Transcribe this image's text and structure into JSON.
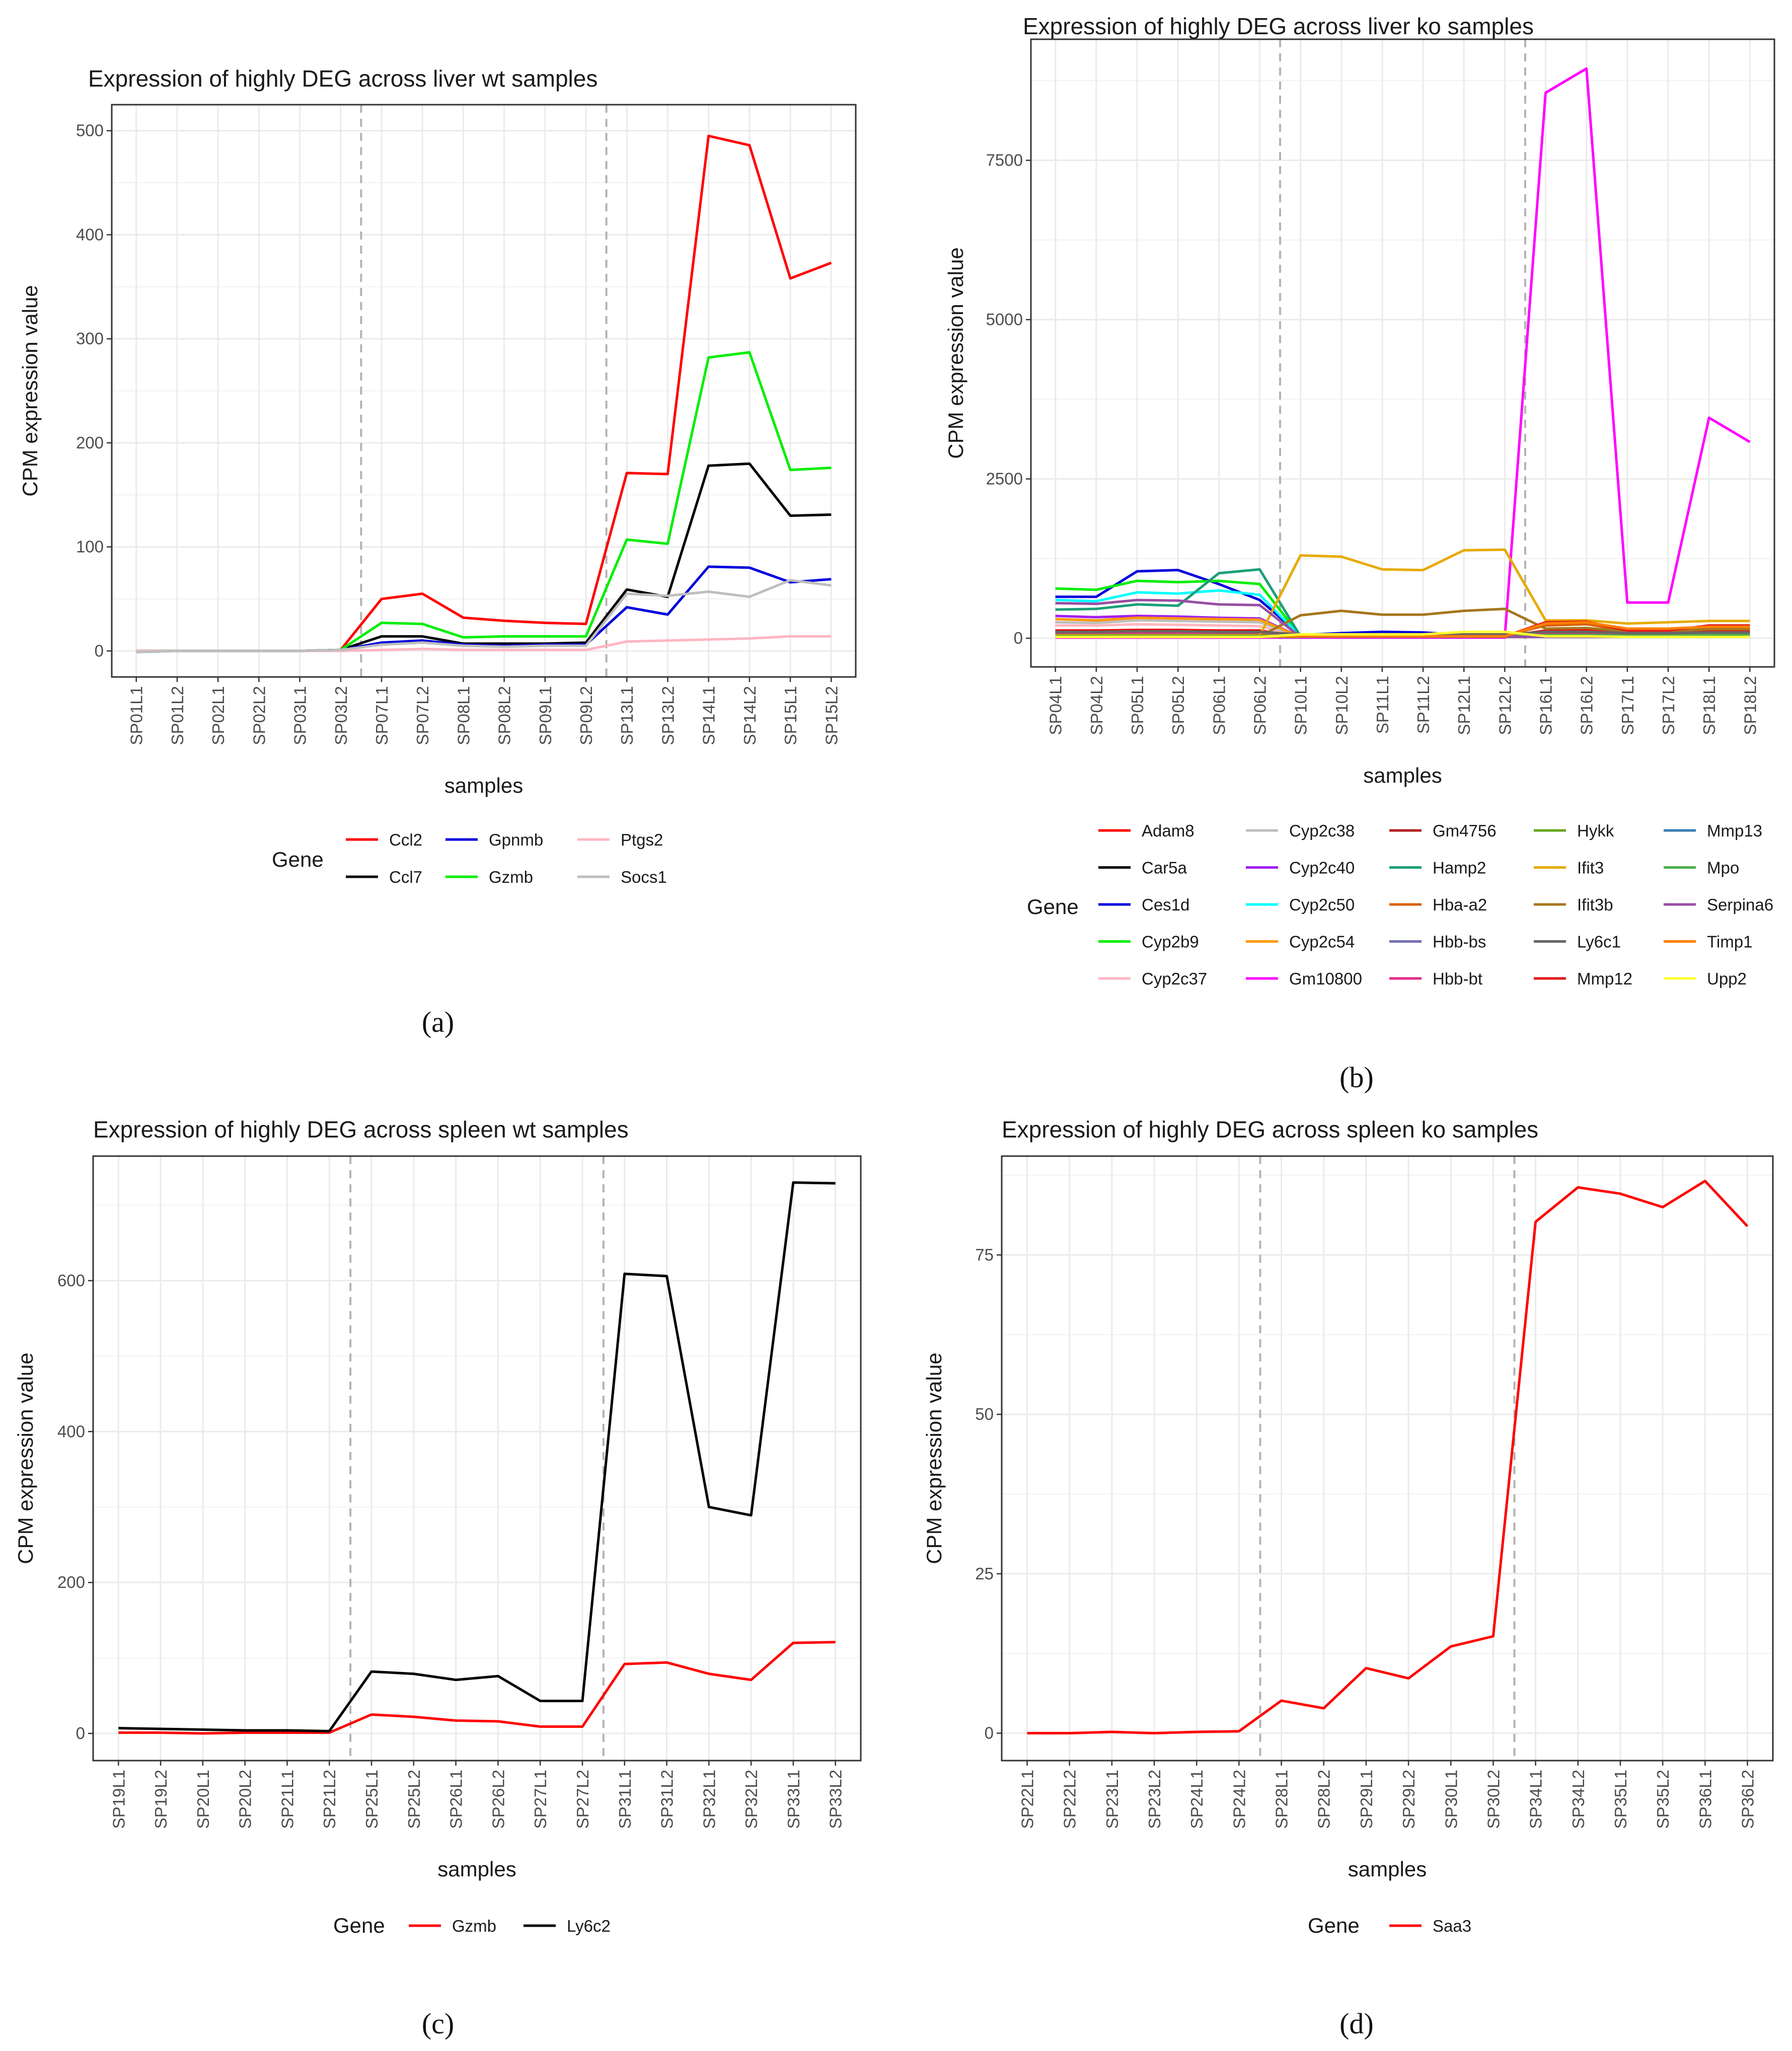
{
  "chart_data": [
    {
      "panel": "a",
      "type": "line",
      "title": "Expression of highly DEG across liver wt samples",
      "xlabel": "samples",
      "ylabel": "CPM expression value",
      "ylim": [
        -25,
        525
      ],
      "yticks": [
        0,
        100,
        200,
        300,
        400,
        500
      ],
      "categories": [
        "SP01L1",
        "SP01L2",
        "SP02L1",
        "SP02L2",
        "SP03L1",
        "SP03L2",
        "SP07L1",
        "SP07L2",
        "SP08L1",
        "SP08L2",
        "SP09L1",
        "SP09L2",
        "SP13L1",
        "SP13L2",
        "SP14L1",
        "SP14L2",
        "SP15L1",
        "SP15L2"
      ],
      "vlines_after_index": [
        5,
        11
      ],
      "legend_title": "Gene",
      "legend_cols": 3,
      "series": [
        {
          "name": "Ccl2",
          "color": "#ff0000",
          "values": [
            0,
            0,
            0,
            0,
            0,
            1,
            50,
            55,
            32,
            29,
            27,
            26,
            171,
            170,
            495,
            486,
            358,
            373
          ]
        },
        {
          "name": "Ccl7",
          "color": "#000000",
          "values": [
            0,
            0,
            0,
            0,
            0,
            1,
            14,
            14,
            7,
            7,
            7,
            8,
            59,
            52,
            178,
            180,
            130,
            131
          ]
        },
        {
          "name": "Gpnmb",
          "color": "#0000dd",
          "values": [
            -1,
            0,
            0,
            0,
            0,
            1,
            8,
            10,
            6,
            5,
            6,
            6,
            42,
            35,
            81,
            80,
            66,
            69
          ]
        },
        {
          "name": "Gzmb",
          "color": "#00ee00",
          "values": [
            0,
            0,
            0,
            0,
            0,
            1,
            27,
            26,
            13,
            14,
            14,
            14,
            107,
            103,
            282,
            287,
            174,
            176
          ]
        },
        {
          "name": "Ptgs2",
          "color": "#ffb6c1",
          "values": [
            0,
            0,
            0,
            0,
            0,
            0,
            1,
            2,
            1,
            1,
            1,
            1,
            9,
            10,
            11,
            12,
            14,
            14
          ]
        },
        {
          "name": "Socs1",
          "color": "#bebebe",
          "values": [
            -1,
            0,
            0,
            0,
            0,
            1,
            6,
            8,
            5,
            4,
            5,
            5,
            55,
            53,
            57,
            52,
            68,
            63
          ]
        }
      ]
    },
    {
      "panel": "b",
      "type": "line",
      "title": "Expression of highly DEG across liver ko samples",
      "xlabel": "samples",
      "ylabel": "CPM expression value",
      "ylim": [
        -450,
        9400
      ],
      "yticks": [
        0,
        2500,
        5000,
        7500
      ],
      "categories": [
        "SP04L1",
        "SP04L2",
        "SP05L1",
        "SP05L2",
        "SP06L1",
        "SP06L2",
        "SP10L1",
        "SP10L2",
        "SP11L1",
        "SP11L2",
        "SP12L1",
        "SP12L2",
        "SP16L1",
        "SP16L2",
        "SP17L1",
        "SP17L2",
        "SP18L1",
        "SP18L2"
      ],
      "vlines_after_index": [
        5,
        11
      ],
      "legend_title": "Gene",
      "legend_cols": 5,
      "series": [
        {
          "name": "Adam8",
          "color": "#ff0000",
          "values": [
            120,
            120,
            130,
            130,
            120,
            120,
            20,
            30,
            30,
            30,
            30,
            30,
            120,
            130,
            100,
            100,
            120,
            120
          ]
        },
        {
          "name": "Car5a",
          "color": "#000000",
          "values": [
            100,
            100,
            110,
            110,
            100,
            100,
            20,
            20,
            20,
            20,
            20,
            20,
            40,
            40,
            30,
            30,
            40,
            40
          ]
        },
        {
          "name": "Ces1d",
          "color": "#0000dd",
          "values": [
            650,
            650,
            1050,
            1070,
            850,
            600,
            50,
            80,
            100,
            90,
            50,
            40,
            30,
            30,
            20,
            20,
            20,
            20
          ]
        },
        {
          "name": "Cyp2b9",
          "color": "#00ee00",
          "values": [
            780,
            760,
            900,
            880,
            900,
            850,
            30,
            30,
            30,
            30,
            30,
            30,
            20,
            20,
            20,
            20,
            20,
            20
          ]
        },
        {
          "name": "Cyp2c37",
          "color": "#ffb6c1",
          "values": [
            200,
            200,
            220,
            210,
            200,
            190,
            20,
            20,
            20,
            20,
            20,
            20,
            20,
            20,
            20,
            20,
            20,
            20
          ]
        },
        {
          "name": "Cyp2c38",
          "color": "#bebebe",
          "values": [
            250,
            240,
            280,
            270,
            260,
            250,
            20,
            20,
            20,
            20,
            20,
            20,
            20,
            20,
            20,
            20,
            20,
            20
          ]
        },
        {
          "name": "Cyp2c40",
          "color": "#a020f0",
          "values": [
            350,
            330,
            350,
            340,
            320,
            310,
            20,
            20,
            20,
            20,
            20,
            20,
            20,
            20,
            20,
            20,
            20,
            20
          ]
        },
        {
          "name": "Cyp2c50",
          "color": "#00ffff",
          "values": [
            600,
            580,
            720,
            700,
            750,
            680,
            30,
            30,
            30,
            30,
            30,
            30,
            20,
            20,
            20,
            20,
            20,
            20
          ]
        },
        {
          "name": "Cyp2c54",
          "color": "#ff9900",
          "values": [
            300,
            280,
            320,
            310,
            300,
            290,
            20,
            20,
            20,
            20,
            20,
            20,
            20,
            20,
            20,
            20,
            20,
            20
          ]
        },
        {
          "name": "Gm10800",
          "color": "#ff00ff",
          "values": [
            10,
            10,
            10,
            10,
            10,
            10,
            10,
            10,
            10,
            10,
            10,
            10,
            8560,
            8940,
            560,
            560,
            3460,
            3080
          ]
        },
        {
          "name": "Gm4756",
          "color": "#b22222",
          "values": [
            40,
            40,
            40,
            40,
            40,
            40,
            20,
            20,
            20,
            20,
            20,
            20,
            60,
            60,
            40,
            40,
            50,
            50
          ]
        },
        {
          "name": "Hamp2",
          "color": "#1b9e77",
          "values": [
            450,
            460,
            530,
            510,
            1020,
            1080,
            30,
            30,
            30,
            30,
            30,
            30,
            20,
            20,
            20,
            20,
            20,
            20
          ]
        },
        {
          "name": "Hba-a2",
          "color": "#d95f02",
          "values": [
            60,
            60,
            70,
            70,
            60,
            60,
            40,
            40,
            50,
            50,
            40,
            40,
            200,
            220,
            120,
            120,
            150,
            150
          ]
        },
        {
          "name": "Hbb-bs",
          "color": "#7570b3",
          "values": [
            80,
            80,
            90,
            90,
            80,
            80,
            50,
            60,
            60,
            60,
            50,
            50,
            100,
            100,
            80,
            80,
            90,
            90
          ]
        },
        {
          "name": "Hbb-bt",
          "color": "#e7298a",
          "values": [
            70,
            70,
            80,
            80,
            70,
            70,
            40,
            50,
            50,
            50,
            40,
            40,
            90,
            90,
            70,
            70,
            80,
            80
          ]
        },
        {
          "name": "Hykk",
          "color": "#66a61e",
          "values": [
            50,
            50,
            50,
            50,
            50,
            50,
            20,
            20,
            20,
            20,
            20,
            20,
            30,
            30,
            20,
            20,
            30,
            30
          ]
        },
        {
          "name": "Ifit3",
          "color": "#e6ab02",
          "values": [
            40,
            40,
            40,
            40,
            40,
            40,
            1300,
            1280,
            1080,
            1070,
            1380,
            1390,
            280,
            280,
            230,
            250,
            270,
            270
          ]
        },
        {
          "name": "Ifit3b",
          "color": "#a6761d",
          "values": [
            30,
            30,
            30,
            30,
            30,
            30,
            360,
            430,
            370,
            370,
            430,
            460,
            150,
            160,
            110,
            110,
            140,
            140
          ]
        },
        {
          "name": "Ly6c1",
          "color": "#666666",
          "values": [
            100,
            100,
            110,
            110,
            100,
            100,
            60,
            60,
            60,
            60,
            60,
            60,
            100,
            100,
            80,
            80,
            90,
            90
          ]
        },
        {
          "name": "Mmp12",
          "color": "#e41a1c",
          "values": [
            20,
            20,
            20,
            20,
            20,
            20,
            30,
            30,
            30,
            30,
            30,
            30,
            250,
            260,
            120,
            120,
            200,
            200
          ]
        },
        {
          "name": "Mmp13",
          "color": "#377eb8",
          "values": [
            20,
            20,
            20,
            20,
            20,
            20,
            20,
            20,
            20,
            20,
            20,
            20,
            40,
            40,
            30,
            30,
            40,
            40
          ]
        },
        {
          "name": "Mpo",
          "color": "#4daf4a",
          "values": [
            30,
            30,
            30,
            30,
            30,
            30,
            20,
            20,
            20,
            20,
            20,
            20,
            50,
            50,
            40,
            40,
            50,
            50
          ]
        },
        {
          "name": "Serpina6",
          "color": "#984ea3",
          "values": [
            550,
            540,
            600,
            590,
            530,
            520,
            20,
            20,
            20,
            20,
            20,
            20,
            20,
            20,
            20,
            20,
            20,
            20
          ]
        },
        {
          "name": "Timp1",
          "color": "#ff7f00",
          "values": [
            20,
            20,
            20,
            20,
            20,
            20,
            30,
            30,
            30,
            30,
            30,
            30,
            230,
            250,
            150,
            150,
            180,
            180
          ]
        },
        {
          "name": "Upp2",
          "color": "#ffff33",
          "values": [
            20,
            20,
            20,
            20,
            20,
            20,
            60,
            60,
            60,
            60,
            100,
            100,
            30,
            30,
            20,
            20,
            20,
            20
          ]
        }
      ]
    },
    {
      "panel": "c",
      "type": "line",
      "title": "Expression of highly DEG across spleen wt samples",
      "xlabel": "samples",
      "ylabel": "CPM expression value",
      "ylim": [
        -36,
        765
      ],
      "yticks": [
        0,
        200,
        400,
        600
      ],
      "categories": [
        "SP19L1",
        "SP19L2",
        "SP20L1",
        "SP20L2",
        "SP21L1",
        "SP21L2",
        "SP25L1",
        "SP25L2",
        "SP26L1",
        "SP26L2",
        "SP27L1",
        "SP27L2",
        "SP31L1",
        "SP31L2",
        "SP32L1",
        "SP32L2",
        "SP33L1",
        "SP33L2"
      ],
      "vlines_after_index": [
        5,
        11
      ],
      "legend_title": "Gene",
      "legend_cols": 2,
      "series": [
        {
          "name": "Gzmb",
          "color": "#ff0000",
          "values": [
            1,
            1,
            0,
            1,
            1,
            1,
            25,
            22,
            17,
            16,
            9,
            9,
            92,
            94,
            79,
            71,
            120,
            121
          ]
        },
        {
          "name": "Ly6c2",
          "color": "#000000",
          "values": [
            7,
            6,
            5,
            4,
            4,
            3,
            82,
            79,
            71,
            76,
            43,
            43,
            609,
            606,
            300,
            289,
            730,
            729
          ]
        }
      ]
    },
    {
      "panel": "d",
      "type": "line",
      "title": "Expression of highly DEG across spleen ko samples",
      "xlabel": "samples",
      "ylabel": "CPM expression value",
      "ylim": [
        -4.3,
        90.5
      ],
      "yticks": [
        0,
        25,
        50,
        75
      ],
      "categories": [
        "SP22L1",
        "SP22L2",
        "SP23L1",
        "SP23L2",
        "SP24L1",
        "SP24L2",
        "SP28L1",
        "SP28L2",
        "SP29L1",
        "SP29L2",
        "SP30L1",
        "SP30L2",
        "SP34L1",
        "SP34L2",
        "SP35L1",
        "SP35L2",
        "SP36L1",
        "SP36L2"
      ],
      "vlines_after_index": [
        5,
        11
      ],
      "legend_title": "Gene",
      "legend_cols": 1,
      "series": [
        {
          "name": "Saa3",
          "color": "#ff0000",
          "values": [
            0,
            0,
            0.2,
            0,
            0.2,
            0.3,
            5.1,
            3.9,
            10.2,
            8.6,
            13.6,
            15.2,
            80.2,
            85.6,
            84.6,
            82.5,
            86.6,
            79.5
          ]
        }
      ]
    }
  ],
  "panel_labels": [
    "(a)",
    "(b)",
    "(c)",
    "(d)"
  ]
}
